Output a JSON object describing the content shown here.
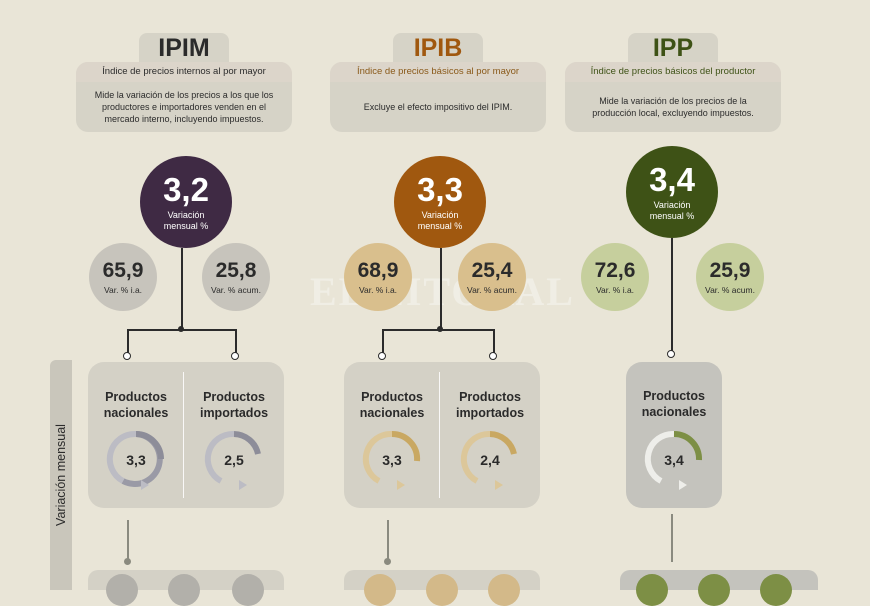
{
  "watermark": "EL LITORAL",
  "side_label": "Variación mensual",
  "colors": {
    "background": "#e9e5d7",
    "ipim": "#3f2a44",
    "ipib": "#a0580f",
    "ipp": "#3e5216",
    "ipim_light": "#c7c4bc",
    "ipib_light": "#d9bf8d",
    "ipp_light": "#c6cf9d",
    "ipib_subtitle": "#8a5a1a",
    "ipp_subtitle": "#3e5216"
  },
  "ipim": {
    "tab": "IPIM",
    "subtitle": "Índice de precios internos al por mayor",
    "description": "Mide la variación de los precios a los que los productores e importadores venden en el mercado interno, incluyendo impuestos.",
    "monthly_value": "3,2",
    "monthly_label": "Variación mensual %",
    "yoy_value": "65,9",
    "yoy_label": "Var. % i.a.",
    "acum_value": "25,8",
    "acum_label": "Var. % acum.",
    "products": [
      {
        "name": "Productos nacionales",
        "value": "3,3"
      },
      {
        "name": "Productos importados",
        "value": "2,5"
      }
    ]
  },
  "ipib": {
    "tab": "IPIB",
    "subtitle": "Índice de precios básicos al por mayor",
    "description": "Excluye el efecto impositivo del IPIM.",
    "monthly_value": "3,3",
    "monthly_label": "Variación mensual %",
    "yoy_value": "68,9",
    "yoy_label": "Var. % i.a.",
    "acum_value": "25,4",
    "acum_label": "Var. % acum.",
    "products": [
      {
        "name": "Productos nacionales",
        "value": "3,3"
      },
      {
        "name": "Productos importados",
        "value": "2,4"
      }
    ]
  },
  "ipp": {
    "tab": "IPP",
    "subtitle": "Índice de precios básicos del productor",
    "description": "Mide la variación de los precios de la producción local, excluyendo impuestos.",
    "monthly_value": "3,4",
    "monthly_label": "Variación mensual %",
    "yoy_value": "72,6",
    "yoy_label": "Var. % i.a.",
    "acum_value": "25,9",
    "acum_label": "Var. % acum.",
    "products": [
      {
        "name": "Productos nacionales",
        "value": "3,4"
      }
    ]
  }
}
